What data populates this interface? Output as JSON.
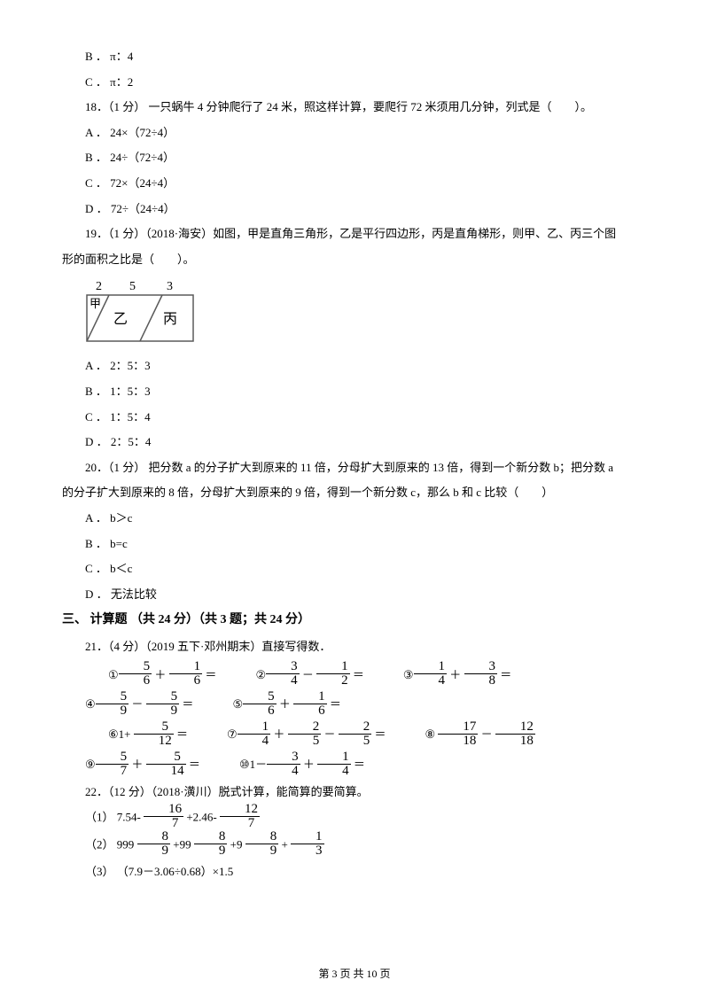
{
  "q17": {
    "optB": "B ． π：4",
    "optC": "C ． π：2"
  },
  "q18": {
    "stem": "18．（1 分） 一只蜗牛 4 分钟爬行了 24 米，照这样计算，要爬行 72 米须用几分钟，列式是（　　）。",
    "optA": "A ． 24×（72÷4）",
    "optB": "B ． 24÷（72÷4）",
    "optC": "C ． 72×（24÷4）",
    "optD": "D ． 72÷（24÷4）"
  },
  "q19": {
    "stem1": "19．（1 分）（2018·海安）如图，甲是直角三角形，乙是平行四边形，丙是直角梯形，则甲、乙、丙三个图",
    "stem2": "形的面积之比是（　　）。",
    "diagram": {
      "labels": {
        "t1": "2",
        "t2": "5",
        "t3": "3",
        "a": "甲",
        "b": "乙",
        "c": "丙"
      },
      "stroke": "#5a5a5a",
      "fill": "#ffffff"
    },
    "optA": "A ． 2：5：3",
    "optB": "B ． 1：5：3",
    "optC": "C ． 1：5：4",
    "optD": "D ． 2：5：4"
  },
  "q20": {
    "stem1": "20．（1 分） 把分数 a 的分子扩大到原来的 11 倍，分母扩大到原来的 13 倍，得到一个新分数 b；把分数 a",
    "stem2": "的分子扩大到原来的 8 倍，分母扩大到原来的 9 倍，得到一个新分数 c，那么 b 和 c 比较（　　）",
    "optA": "A ． b＞c",
    "optB": "B ． b=c",
    "optC": "C ． b＜c",
    "optD": "D ． 无法比较"
  },
  "section3": "三、 计算题 （共 24 分）（共 3 题；共 24 分）",
  "q21": {
    "stem": "21．（4 分）（2019 五下·邓州期末）直接写得数．",
    "items": [
      {
        "pre": "①",
        "a": {
          "n": "5",
          "d": "6"
        },
        "op": "＋",
        "b": {
          "n": "1",
          "d": "6"
        },
        "eq": "＝"
      },
      {
        "pre": "②",
        "a": {
          "n": "3",
          "d": "4"
        },
        "op": "－",
        "b": {
          "n": "1",
          "d": "2"
        },
        "eq": "＝"
      },
      {
        "pre": "③",
        "a": {
          "n": "1",
          "d": "4"
        },
        "op": "＋",
        "b": {
          "n": "3",
          "d": "8"
        },
        "eq": "＝"
      },
      {
        "pre": "④",
        "a": {
          "n": "5",
          "d": "9"
        },
        "op": "－",
        "b": {
          "n": "5",
          "d": "9"
        },
        "eq": "＝"
      },
      {
        "pre": "⑤",
        "a": {
          "n": "5",
          "d": "6"
        },
        "op": "＋",
        "b": {
          "n": "1",
          "d": "6"
        },
        "eq": "＝"
      }
    ],
    "items2": [
      {
        "pre": "⑥1+ ",
        "a": {
          "n": "5",
          "d": "12"
        },
        "eq": " ＝"
      },
      {
        "pre": "⑦",
        "a": {
          "n": "1",
          "d": "4"
        },
        "op": "＋",
        "b": {
          "n": "2",
          "d": "5"
        },
        "op2": "－",
        "c": {
          "n": "2",
          "d": "5"
        },
        "eq": " ＝"
      },
      {
        "pre": "⑧ ",
        "a": {
          "n": "17",
          "d": "18"
        },
        "op": "－",
        "b": {
          "n": "12",
          "d": "18"
        }
      },
      {
        "pre": "⑨",
        "a": {
          "n": "5",
          "d": "7"
        },
        "op": "＋",
        "b": {
          "n": "5",
          "d": "14"
        },
        "eq": " ＝"
      },
      {
        "pre": "⑩1－",
        "a": {
          "n": "3",
          "d": "4"
        },
        "op": "＋",
        "b": {
          "n": "1",
          "d": "4"
        },
        "eq": " ＝"
      }
    ]
  },
  "q22": {
    "stem": "22．（12 分）（2018·潢川）脱式计算，能简算的要简算。",
    "line1_pre": "（1） 7.54- ",
    "line1_f1": {
      "n": "16",
      "d": "7"
    },
    "line1_mid": " +2.46- ",
    "line1_f2": {
      "n": "12",
      "d": "7"
    },
    "line2_pre": "（2） 999 ",
    "line2_f1": {
      "n": "8",
      "d": "9"
    },
    "line2_m1": " +99 ",
    "line2_f2": {
      "n": "8",
      "d": "9"
    },
    "line2_m2": " +9 ",
    "line2_f3": {
      "n": "8",
      "d": "9"
    },
    "line2_m3": " + ",
    "line2_f4": {
      "n": "1",
      "d": "3"
    },
    "line3": "（3） （7.9－3.06÷0.68）×1.5"
  },
  "footer": "第 3 页 共 10 页"
}
